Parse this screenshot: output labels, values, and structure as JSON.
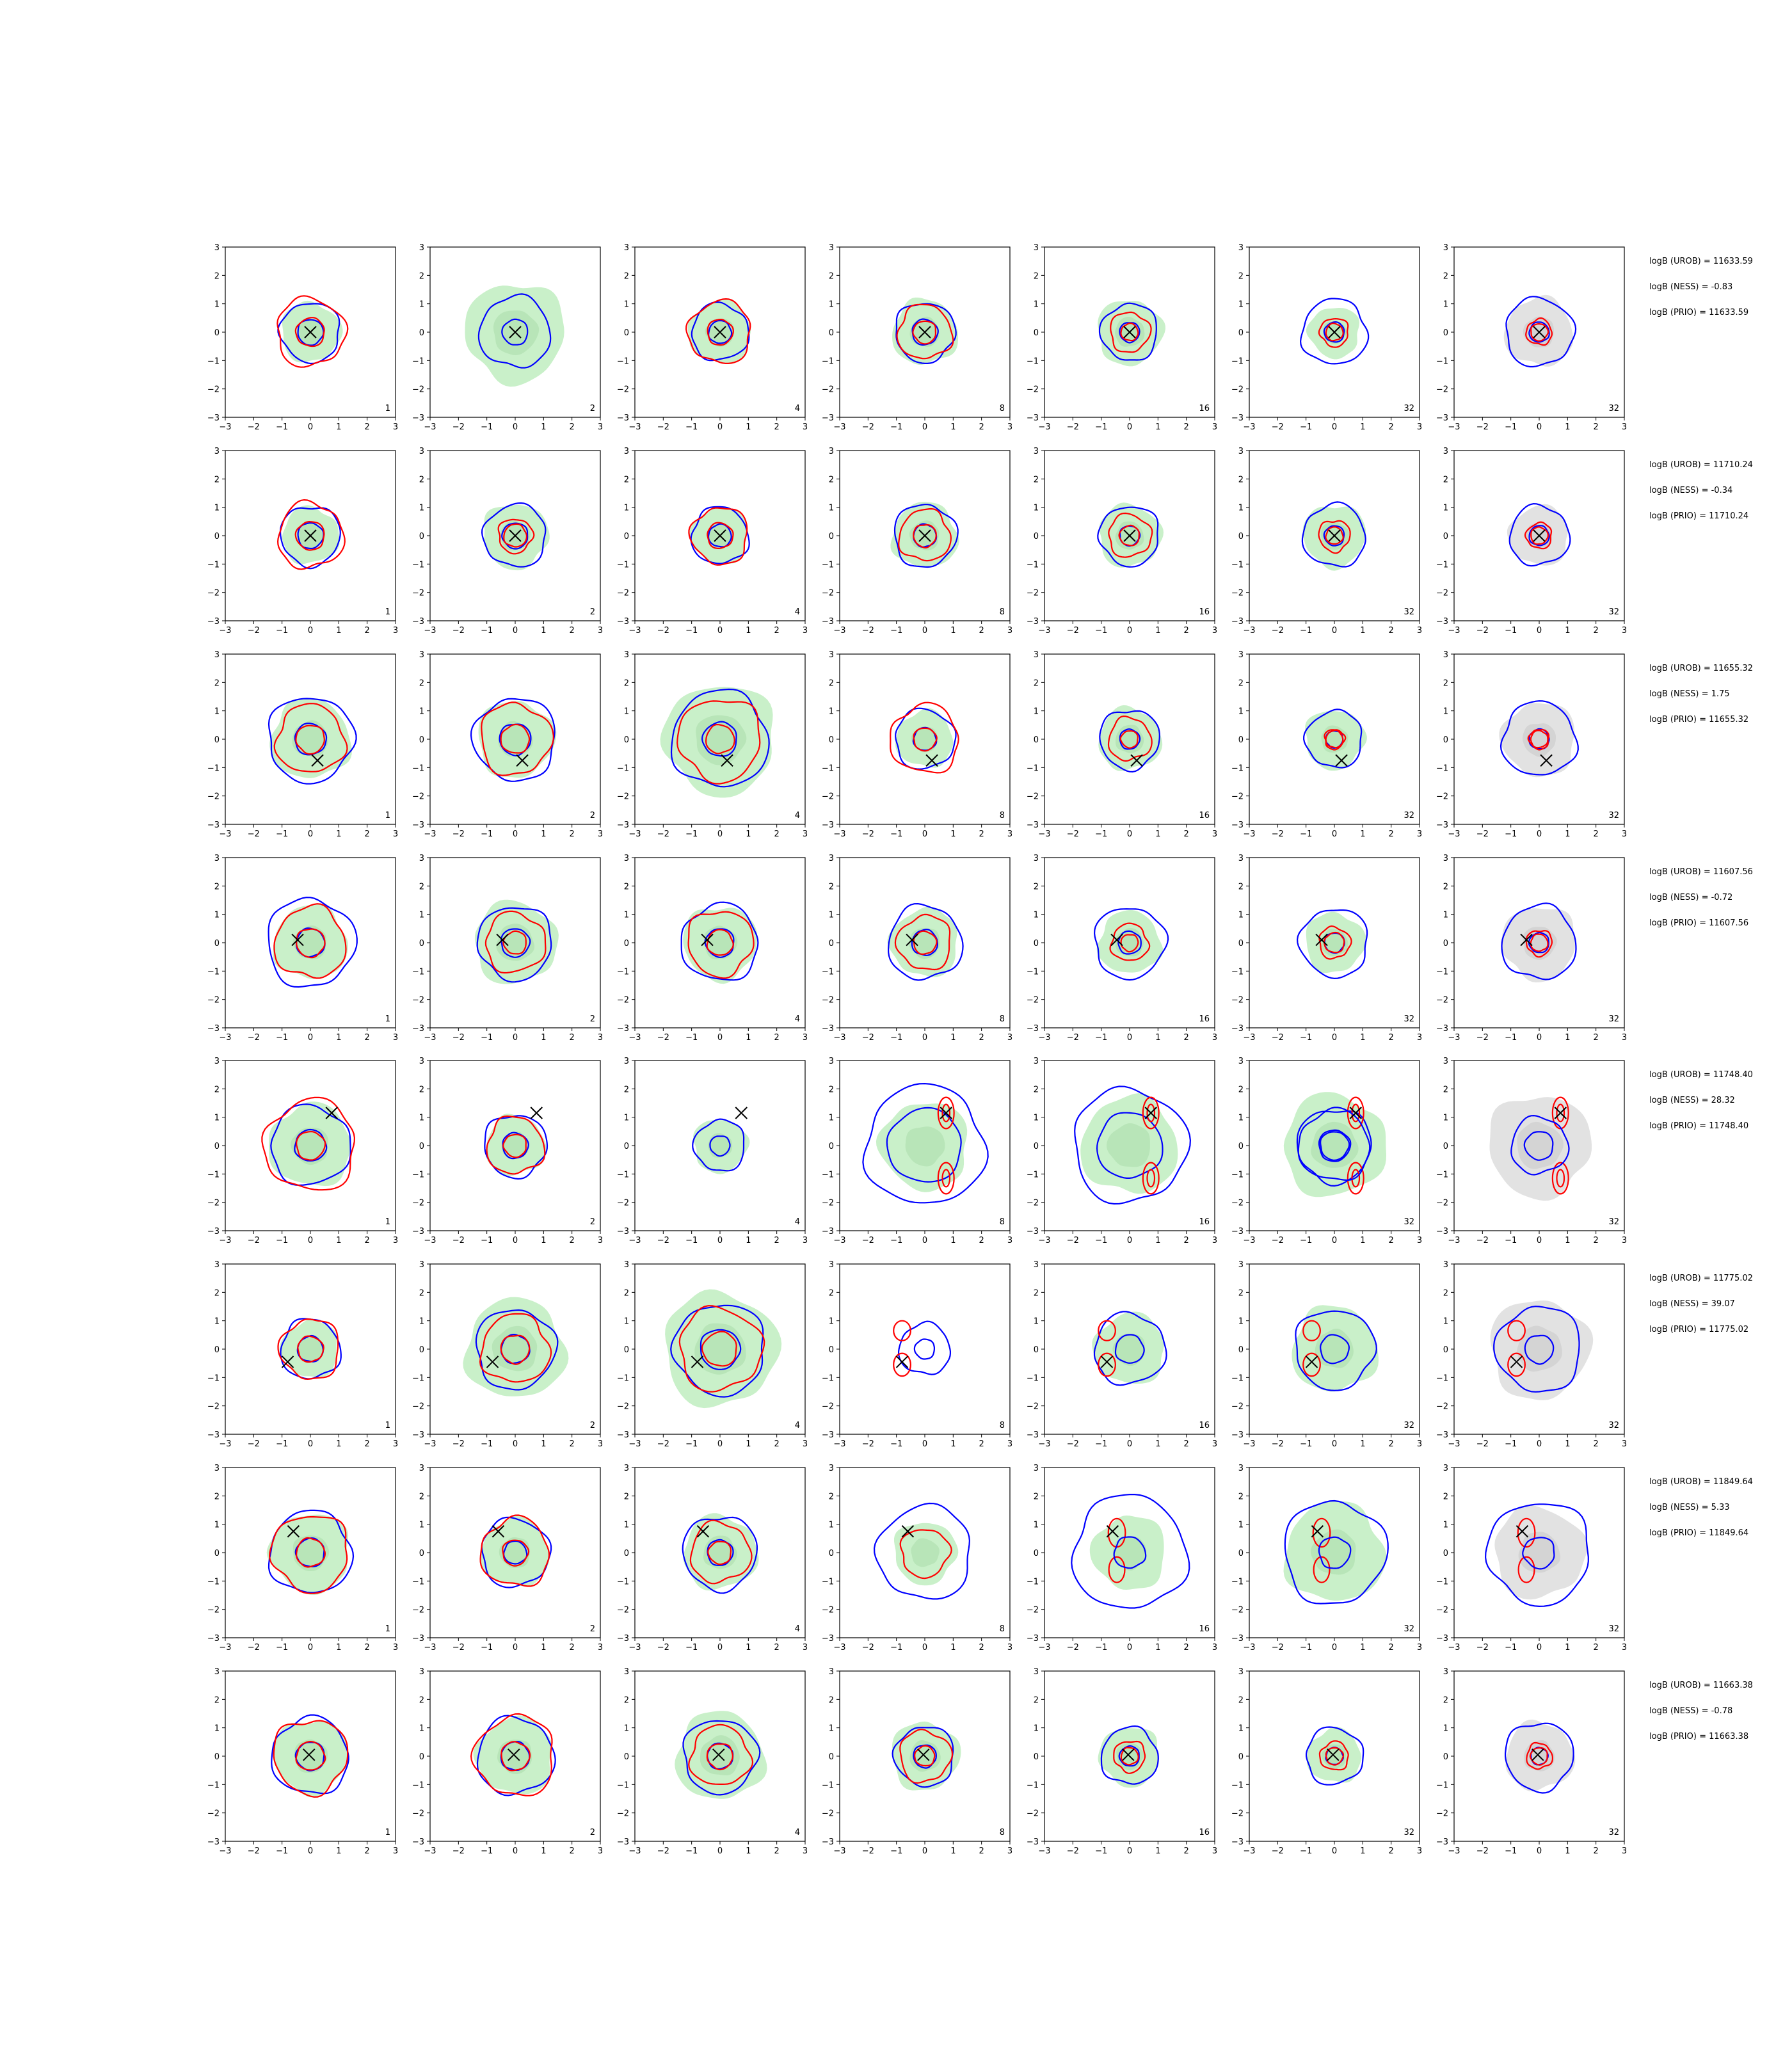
{
  "chart_data": {
    "type": "contour-grid",
    "rows": 8,
    "cols": 7,
    "xlim": [
      -3,
      3
    ],
    "ylim": [
      -3,
      3
    ],
    "xticks": [
      "−3",
      "−2",
      "−1",
      "0",
      "1",
      "2",
      "3"
    ],
    "yticks": [
      "3",
      "2",
      "1",
      "0",
      "−1",
      "−2",
      "−3"
    ],
    "colors": {
      "fill": "#c9f0c9",
      "fill_dark": "#a9dca9",
      "gray": "#e2e2e2",
      "gray_dark": "#c8c8c8",
      "blue": "#0000ff",
      "red": "#ff0000",
      "marker": "#000000"
    },
    "col_labels": [
      "1",
      "2",
      "4",
      "8",
      "16",
      "32",
      "32"
    ],
    "last_col_gray": true,
    "panels": [
      {
        "row": 0,
        "marker": [
          0,
          0
        ],
        "cols": [
          {
            "fill": 1.05,
            "blue": [
              1.05,
              0.45
            ],
            "red": [
              1.2,
              0.5
            ]
          },
          {
            "fill": 1.75,
            "blue": [
              1.25,
              0.45
            ],
            "red": []
          },
          {
            "fill": 1.1,
            "blue": [
              1.0,
              0.4
            ],
            "red": [
              1.1,
              0.45
            ]
          },
          {
            "fill": 1.15,
            "blue": [
              1.05,
              0.45
            ],
            "red": [
              0.95,
              0.4
            ]
          },
          {
            "fill": 1.15,
            "blue": [
              1.0,
              0.35
            ],
            "red": [
              0.7,
              0.3
            ]
          },
          {
            "fill": 0.9,
            "blue": [
              1.15,
              0.35
            ],
            "red": [
              0.5,
              0.3
            ]
          },
          {
            "fill": 1.2,
            "blue": [
              1.2,
              0.35
            ],
            "red": [
              0.45,
              0.3
            ]
          }
        ],
        "logb": [
          "logB (UROB) = 11633.59",
          "logB (NESS) = -0.83",
          "logB (PRIO) = 11633.59"
        ]
      },
      {
        "row": 1,
        "marker": [
          0,
          0
        ],
        "cols": [
          {
            "fill": 1.0,
            "blue": [
              1.05,
              0.45
            ],
            "red": [
              1.15,
              0.5
            ]
          },
          {
            "fill": 1.15,
            "blue": [
              1.1,
              0.45
            ],
            "red": [
              0.6,
              0.4
            ]
          },
          {
            "fill": 1.0,
            "blue": [
              1.0,
              0.4
            ],
            "red": [
              1.0,
              0.45
            ]
          },
          {
            "fill": 1.15,
            "blue": [
              1.1,
              0.4
            ],
            "red": [
              0.9,
              0.4
            ]
          },
          {
            "fill": 1.1,
            "blue": [
              1.05,
              0.35
            ],
            "red": [
              0.75,
              0.35
            ]
          },
          {
            "fill": 1.1,
            "blue": [
              1.1,
              0.35
            ],
            "red": [
              0.55,
              0.3
            ]
          },
          {
            "fill": 1.05,
            "blue": [
              1.05,
              0.35
            ],
            "red": [
              0.45,
              0.3
            ]
          }
        ],
        "logb": [
          "logB (UROB) = 11710.24",
          "logB (NESS) = -0.34",
          "logB (PRIO) = 11710.24"
        ]
      },
      {
        "row": 2,
        "marker": [
          0.25,
          -0.75
        ],
        "cols": [
          {
            "fill": 1.4,
            "blue": [
              1.5,
              0.55
            ],
            "red": [
              1.2,
              0.5
            ]
          },
          {
            "fill": 1.35,
            "blue": [
              1.45,
              0.55
            ],
            "red": [
              1.25,
              0.5
            ]
          },
          {
            "fill": 1.95,
            "blue": [
              1.7,
              0.6
            ],
            "red": [
              1.45,
              0.5
            ]
          },
          {
            "fill": 1.0,
            "blue": [
              1.05,
              0.4
            ],
            "red": [
              1.2,
              0.4
            ]
          },
          {
            "fill": 1.1,
            "blue": [
              1.05,
              0.35
            ],
            "red": [
              0.75,
              0.3
            ]
          },
          {
            "fill": 1.05,
            "blue": [
              1.0,
              0.3
            ],
            "red": [
              0.35,
              0.3
            ]
          },
          {
            "fill": 1.3,
            "blue": [
              1.3,
              0.35
            ],
            "red": [
              0.35,
              0.3
            ]
          }
        ],
        "logb": [
          "logB (UROB) = 11655.32",
          "logB (NESS) = 1.75",
          "logB (PRIO) = 11655.32"
        ]
      },
      {
        "row": 3,
        "marker": [
          -0.45,
          0.1
        ],
        "cols": [
          {
            "fill": 1.3,
            "blue": [
              1.55,
              0.5
            ],
            "red": [
              1.25,
              0.5
            ]
          },
          {
            "fill": 1.45,
            "blue": [
              1.3,
              0.5
            ],
            "red": [
              1.05,
              0.4
            ]
          },
          {
            "fill": 1.3,
            "blue": [
              1.35,
              0.5
            ],
            "red": [
              1.15,
              0.45
            ]
          },
          {
            "fill": 1.2,
            "blue": [
              1.3,
              0.45
            ],
            "red": [
              0.95,
              0.4
            ]
          },
          {
            "fill": 1.1,
            "blue": [
              1.25,
              0.4
            ],
            "red": [
              0.65,
              0.3
            ]
          },
          {
            "fill": 1.05,
            "blue": [
              1.2,
              0.35
            ],
            "red": [
              0.55,
              0.35
            ]
          },
          {
            "fill": 1.3,
            "blue": [
              1.3,
              0.35
            ],
            "red": [
              0.45,
              0.3
            ]
          }
        ],
        "logb": [
          "logB (UROB) = 11607.56",
          "logB (NESS) = -0.72",
          "logB (PRIO) = 11607.56"
        ]
      },
      {
        "row": 4,
        "marker": [
          0.75,
          1.15
        ],
        "cols": [
          {
            "fill": 1.45,
            "blue": [
              1.4,
              0.55
            ],
            "red": [
              1.6,
              0.5
            ]
          },
          {
            "fill": 1.05,
            "blue": [
              1.1,
              0.45
            ],
            "red": [
              1.0,
              0.4
            ]
          },
          {
            "fill": 0.95,
            "blue": [
              0.9,
              0.35
            ],
            "red": [
              0.0,
              0.0
            ]
          },
          {
            "fill": 1.55,
            "blue": [
              2.1,
              1.3
            ],
            "red": [
              0.0,
              0.0
            ]
          },
          {
            "fill": 1.7,
            "blue": [
              2.0,
              1.15
            ],
            "red": [
              0.0,
              0.0
            ]
          },
          {
            "fill": 1.8,
            "blue": [
              1.3,
              0.55
            ],
            "red": [
              0.0,
              0.0
            ]
          },
          {
            "fill": 1.8,
            "blue": [
              0.0,
              0.0
            ],
            "red": [
              0.0,
              0.0
            ]
          }
        ],
        "lobes": [
          0,
          0,
          0,
          1,
          1,
          1,
          1
        ],
        "logb": [
          "logB (UROB) = 11748.40",
          "logB (NESS) = 28.32",
          "logB (PRIO) = 11748.40"
        ]
      },
      {
        "row": 5,
        "marker": [
          -0.8,
          -0.45
        ],
        "cols": [
          {
            "fill": 1.0,
            "blue": [
              1.05,
              0.45
            ],
            "red": [
              1.05,
              0.45
            ]
          },
          {
            "fill": 1.75,
            "blue": [
              1.4,
              0.5
            ],
            "red": [
              1.2,
              0.5
            ]
          },
          {
            "fill": 2.0,
            "blue": [
              1.6,
              0.7
            ],
            "red": [
              1.45,
              0.6
            ]
          },
          {
            "fill": 0.0,
            "blue": [
              0.9,
              0.35
            ],
            "red": [
              0.0,
              0.0
            ]
          },
          {
            "fill": 1.25,
            "blue": [
              1.25,
              0.5
            ],
            "red": [
              0.0,
              0.0
            ]
          },
          {
            "fill": 1.5,
            "blue": [
              1.4,
              0.5
            ],
            "red": [
              0.0,
              0.0
            ]
          },
          {
            "fill": 1.75,
            "blue": [
              1.5,
              0.5
            ],
            "red": [
              0.0,
              0.0
            ]
          }
        ],
        "lobes": [
          0,
          0,
          0,
          2,
          2,
          2,
          2
        ],
        "logb": [
          "logB (UROB) = 11775.02",
          "logB (NESS) = 39.07",
          "logB (PRIO) = 11775.02"
        ]
      },
      {
        "row": 6,
        "marker": [
          -0.6,
          0.75
        ],
        "cols": [
          {
            "fill": 1.4,
            "blue": [
              1.45,
              0.5
            ],
            "red": [
              1.35,
              0.5
            ]
          },
          {
            "fill": 1.2,
            "blue": [
              1.2,
              0.4
            ],
            "red": [
              1.2,
              0.45
            ]
          },
          {
            "fill": 1.3,
            "blue": [
              1.3,
              0.45
            ],
            "red": [
              1.05,
              0.4
            ]
          },
          {
            "fill": 1.1,
            "blue": [
              1.65,
              0.0
            ],
            "red": [
              0.85,
              0.0
            ]
          },
          {
            "fill": 1.3,
            "blue": [
              2.0,
              0.0
            ],
            "red": [
              0.0,
              0.0
            ]
          },
          {
            "fill": 1.75,
            "blue": [
              1.8,
              0.0
            ],
            "red": [
              0.0,
              0.0
            ]
          },
          {
            "fill": 1.6,
            "blue": [
              1.8,
              0.0
            ],
            "red": [
              0.0,
              0.0
            ]
          }
        ],
        "lobes": [
          0,
          0,
          0,
          0,
          3,
          3,
          3
        ],
        "logb": [
          "logB (UROB) = 11849.64",
          "logB (NESS) = 5.33",
          "logB (PRIO) = 11849.64"
        ]
      },
      {
        "row": 7,
        "marker": [
          -0.05,
          0.05
        ],
        "cols": [
          {
            "fill": 1.3,
            "blue": [
              1.35,
              0.5
            ],
            "red": [
              1.3,
              0.5
            ]
          },
          {
            "fill": 1.35,
            "blue": [
              1.35,
              0.5
            ],
            "red": [
              1.4,
              0.5
            ]
          },
          {
            "fill": 1.55,
            "blue": [
              1.3,
              0.45
            ],
            "red": [
              1.05,
              0.45
            ]
          },
          {
            "fill": 1.2,
            "blue": [
              1.05,
              0.4
            ],
            "red": [
              0.9,
              0.35
            ]
          },
          {
            "fill": 1.05,
            "blue": [
              1.0,
              0.35
            ],
            "red": [
              0.55,
              0.3
            ]
          },
          {
            "fill": 0.95,
            "blue": [
              1.0,
              0.3
            ],
            "red": [
              0.5,
              0.3
            ]
          },
          {
            "fill": 1.2,
            "blue": [
              1.2,
              0.3
            ],
            "red": [
              0.45,
              0.3
            ]
          }
        ],
        "logb": [
          "logB (UROB) = 11663.38",
          "logB (NESS) = -0.78",
          "logB (PRIO) = 11663.38"
        ]
      }
    ]
  }
}
